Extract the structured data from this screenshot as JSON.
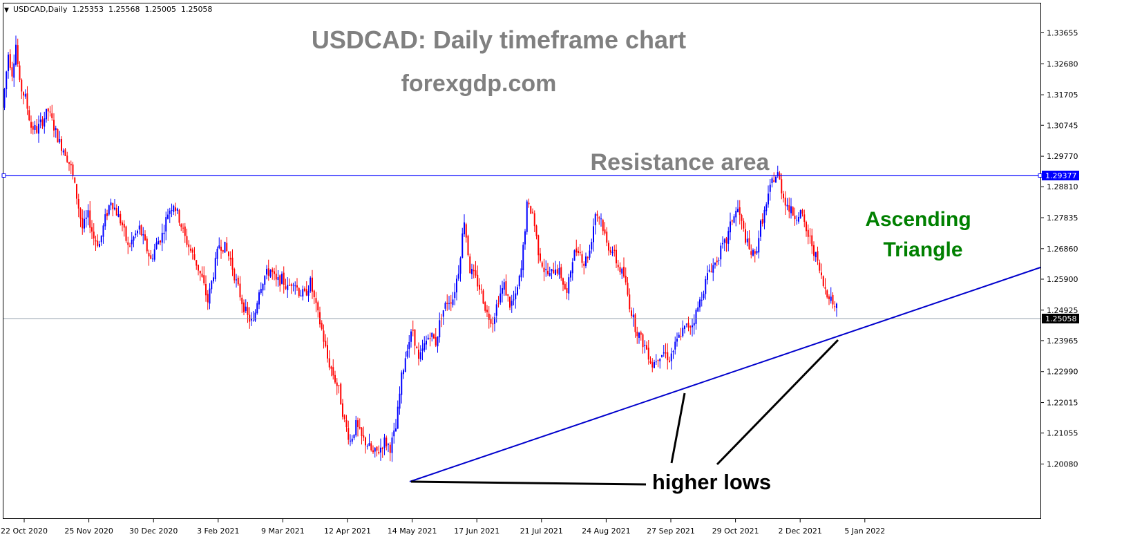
{
  "header": {
    "menu_arrow": "▼",
    "symbol_info": "USDCAD,Daily  1.25353  1.25568  1.25005  1.25058"
  },
  "annotations": {
    "title": "USDCAD: Daily timeframe chart",
    "site": "forexgdp.com",
    "resistance": "Resistance area",
    "pattern_line1": "Ascending",
    "pattern_line2": "Triangle",
    "higher_lows": "higher lows"
  },
  "colors": {
    "bull": "#0000ff",
    "bear": "#ff0000",
    "trendline": "#0000cc",
    "title_gray": "#808080",
    "pattern_green": "#008000",
    "grid_axis": "#000000"
  },
  "chart_data": {
    "type": "candlestick",
    "symbol": "USDCAD",
    "timeframe": "Daily",
    "last_ohlc": {
      "open": 1.25353,
      "high": 1.25568,
      "low": 1.25005,
      "close": 1.25058
    },
    "ylim": [
      1.1975,
      1.343
    ],
    "y_ticks": [
      "1.33655",
      "1.32680",
      "1.31705",
      "1.30745",
      "1.29770",
      "1.28810",
      "1.27835",
      "1.26860",
      "1.25900",
      "1.24925",
      "1.23965",
      "1.22990",
      "1.22015",
      "1.21055",
      "1.20080"
    ],
    "x_ticks": [
      "22 Oct 2020",
      "25 Nov 2020",
      "30 Dec 2020",
      "3 Feb 2021",
      "9 Mar 2021",
      "12 Apr 2021",
      "14 May 2021",
      "17 Jun 2021",
      "21 Jul 2021",
      "24 Aug 2021",
      "27 Sep 2021",
      "29 Oct 2021",
      "2 Dec 2021",
      "5 Jan 2022"
    ],
    "resistance_level": "1.29377",
    "current_price": "1.25058",
    "trendline": {
      "from": {
        "date": "2021-05-17",
        "price": 1.201
      },
      "to": {
        "date": "2022-01-07",
        "price": 1.2463
      },
      "extends_right": true
    },
    "higher_lows": [
      {
        "date": "2021-05-17",
        "price": 1.201
      },
      {
        "date": "2021-09-29",
        "price": 1.229
      },
      {
        "date": "2022-01-07",
        "price": 1.2463
      }
    ],
    "path": [
      [
        0,
        1.313
      ],
      [
        3,
        1.33
      ],
      [
        5,
        1.324
      ],
      [
        7,
        1.333
      ],
      [
        9,
        1.32
      ],
      [
        12,
        1.316
      ],
      [
        15,
        1.307
      ],
      [
        18,
        1.306
      ],
      [
        21,
        1.309
      ],
      [
        24,
        1.312
      ],
      [
        27,
        1.307
      ],
      [
        30,
        1.302
      ],
      [
        33,
        1.299
      ],
      [
        36,
        1.294
      ],
      [
        39,
        1.285
      ],
      [
        42,
        1.275
      ],
      [
        45,
        1.279
      ],
      [
        48,
        1.272
      ],
      [
        51,
        1.27
      ],
      [
        54,
        1.278
      ],
      [
        57,
        1.284
      ],
      [
        60,
        1.28
      ],
      [
        63,
        1.276
      ],
      [
        66,
        1.269
      ],
      [
        69,
        1.272
      ],
      [
        72,
        1.275
      ],
      [
        75,
        1.27
      ],
      [
        78,
        1.265
      ],
      [
        81,
        1.27
      ],
      [
        84,
        1.273
      ],
      [
        87,
        1.28
      ],
      [
        90,
        1.283
      ],
      [
        93,
        1.278
      ],
      [
        96,
        1.272
      ],
      [
        99,
        1.268
      ],
      [
        102,
        1.264
      ],
      [
        105,
        1.259
      ],
      [
        108,
        1.252
      ],
      [
        111,
        1.261
      ],
      [
        114,
        1.27
      ],
      [
        117,
        1.269
      ],
      [
        120,
        1.265
      ],
      [
        123,
        1.258
      ],
      [
        126,
        1.252
      ],
      [
        129,
        1.247
      ],
      [
        132,
        1.245
      ],
      [
        135,
        1.256
      ],
      [
        138,
        1.26
      ],
      [
        141,
        1.262
      ],
      [
        144,
        1.258
      ],
      [
        147,
        1.259
      ],
      [
        150,
        1.256
      ],
      [
        153,
        1.259
      ],
      [
        156,
        1.255
      ],
      [
        159,
        1.254
      ],
      [
        162,
        1.258
      ],
      [
        165,
        1.25
      ],
      [
        168,
        1.243
      ],
      [
        171,
        1.234
      ],
      [
        174,
        1.229
      ],
      [
        177,
        1.224
      ],
      [
        180,
        1.214
      ],
      [
        183,
        1.208
      ],
      [
        186,
        1.213
      ],
      [
        189,
        1.209
      ],
      [
        192,
        1.207
      ],
      [
        195,
        1.204
      ],
      [
        198,
        1.205
      ],
      [
        201,
        1.208
      ],
      [
        204,
        1.206
      ],
      [
        207,
        1.212
      ],
      [
        210,
        1.228
      ],
      [
        213,
        1.238
      ],
      [
        216,
        1.243
      ],
      [
        219,
        1.233
      ],
      [
        222,
        1.238
      ],
      [
        225,
        1.242
      ],
      [
        228,
        1.239
      ],
      [
        231,
        1.248
      ],
      [
        234,
        1.252
      ],
      [
        237,
        1.253
      ],
      [
        240,
        1.262
      ],
      [
        243,
        1.278
      ],
      [
        246,
        1.262
      ],
      [
        249,
        1.259
      ],
      [
        252,
        1.255
      ],
      [
        255,
        1.248
      ],
      [
        258,
        1.246
      ],
      [
        261,
        1.253
      ],
      [
        264,
        1.257
      ],
      [
        267,
        1.251
      ],
      [
        270,
        1.253
      ],
      [
        273,
        1.262
      ],
      [
        276,
        1.282
      ],
      [
        279,
        1.28
      ],
      [
        282,
        1.268
      ],
      [
        285,
        1.262
      ],
      [
        288,
        1.26
      ],
      [
        291,
        1.263
      ],
      [
        294,
        1.26
      ],
      [
        297,
        1.254
      ],
      [
        300,
        1.266
      ],
      [
        303,
        1.269
      ],
      [
        306,
        1.264
      ],
      [
        309,
        1.268
      ],
      [
        312,
        1.28
      ],
      [
        315,
        1.278
      ],
      [
        318,
        1.27
      ],
      [
        321,
        1.268
      ],
      [
        324,
        1.263
      ],
      [
        327,
        1.26
      ],
      [
        330,
        1.251
      ],
      [
        333,
        1.244
      ],
      [
        336,
        1.24
      ],
      [
        339,
        1.237
      ],
      [
        342,
        1.232
      ],
      [
        345,
        1.235
      ],
      [
        348,
        1.236
      ],
      [
        351,
        1.234
      ],
      [
        354,
        1.238
      ],
      [
        357,
        1.242
      ],
      [
        360,
        1.244
      ],
      [
        363,
        1.245
      ],
      [
        366,
        1.25
      ],
      [
        369,
        1.256
      ],
      [
        372,
        1.262
      ],
      [
        375,
        1.264
      ],
      [
        378,
        1.268
      ],
      [
        381,
        1.271
      ],
      [
        384,
        1.278
      ],
      [
        387,
        1.281
      ],
      [
        390,
        1.274
      ],
      [
        393,
        1.268
      ],
      [
        396,
        1.266
      ],
      [
        399,
        1.276
      ],
      [
        402,
        1.282
      ],
      [
        405,
        1.29
      ],
      [
        408,
        1.292
      ],
      [
        411,
        1.285
      ],
      [
        414,
        1.281
      ],
      [
        417,
        1.279
      ],
      [
        420,
        1.28
      ],
      [
        423,
        1.274
      ],
      [
        426,
        1.27
      ],
      [
        429,
        1.264
      ],
      [
        432,
        1.257
      ],
      [
        435,
        1.254
      ],
      [
        438,
        1.2505
      ]
    ]
  }
}
